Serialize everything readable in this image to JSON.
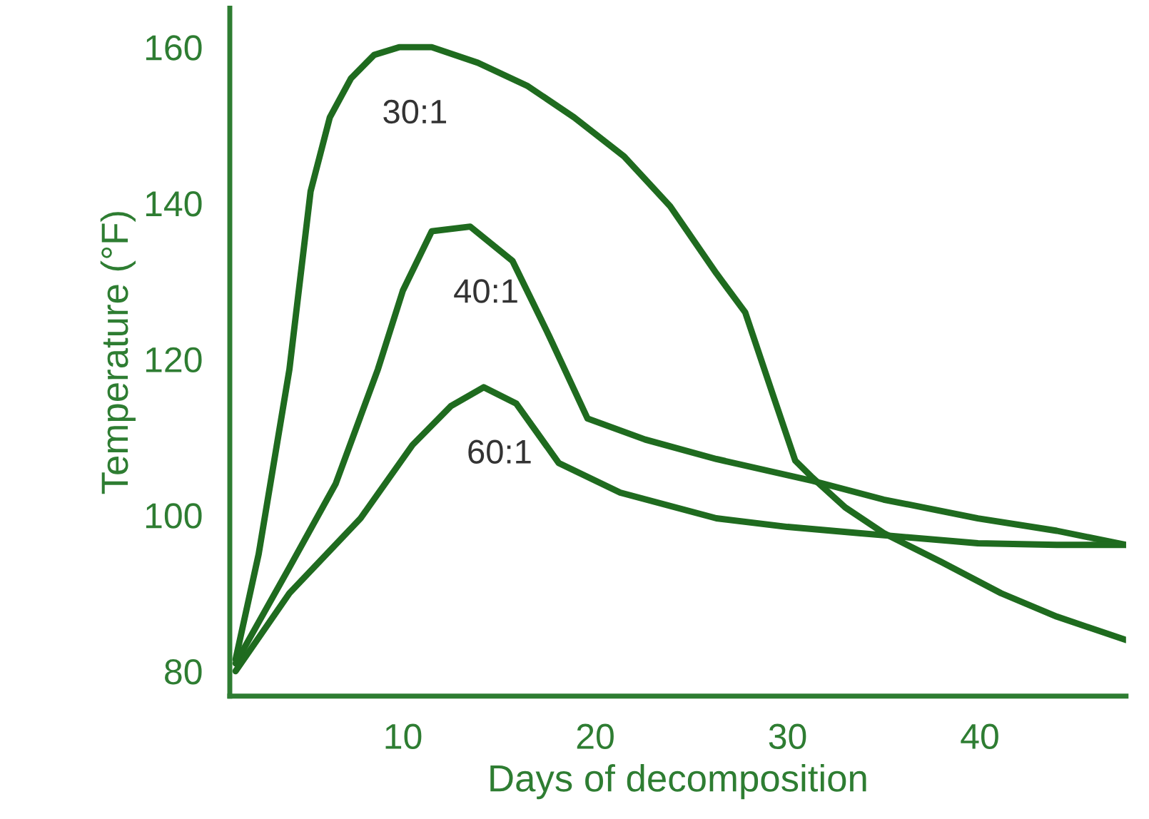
{
  "chart_data": {
    "type": "line",
    "xlabel": "Days of decomposition",
    "ylabel": "Temperature (°F)",
    "xlim": [
      1,
      47.6
    ],
    "ylim": [
      76.8,
      165
    ],
    "xticks": [
      10,
      20,
      30,
      40
    ],
    "yticks": [
      80,
      100,
      120,
      140,
      160
    ],
    "grid": false,
    "legend": false,
    "marker": "none",
    "line_style": "solid",
    "series": [
      {
        "name": "30:1",
        "color": "#1f6b1f",
        "x": [
          1.3,
          2.5,
          4.1,
          5.2,
          6.2,
          7.3,
          8.5,
          9.8,
          11.5,
          13.9,
          16.5,
          18.9,
          21.5,
          23.9,
          26.3,
          27.8,
          29.3,
          30.4,
          31.3,
          33,
          35,
          38,
          41.1,
          44,
          47.6
        ],
        "values": [
          81.5,
          95,
          118.7,
          141.5,
          151,
          156,
          159,
          160,
          160,
          158,
          155,
          151,
          146,
          139.6,
          131,
          126,
          115,
          107,
          104.8,
          101,
          97.7,
          94,
          90,
          87,
          84
        ]
      },
      {
        "name": "40:1",
        "color": "#1f6b1f",
        "x": [
          1.3,
          4.1,
          6.5,
          8.7,
          10,
          11.5,
          13.5,
          15.7,
          17.6,
          19.6,
          22.6,
          26.3,
          31.3,
          35,
          39.9,
          44,
          47.6
        ],
        "values": [
          81,
          93.3,
          104,
          118.7,
          128.8,
          136.4,
          137,
          132.6,
          123,
          112.4,
          109.7,
          107.2,
          104.4,
          102,
          99.6,
          98,
          96.2
        ]
      },
      {
        "name": "60:1",
        "color": "#1f6b1f",
        "x": [
          1.3,
          4.1,
          7.8,
          10.5,
          12.5,
          14.2,
          15.9,
          18.1,
          21.3,
          26.3,
          30,
          33.7,
          39.9,
          44,
          47.6
        ],
        "values": [
          80,
          90,
          99.6,
          109,
          114,
          116.4,
          114.3,
          106.7,
          102.9,
          99.6,
          98.5,
          97.7,
          96.4,
          96.2,
          96.2
        ]
      }
    ]
  }
}
